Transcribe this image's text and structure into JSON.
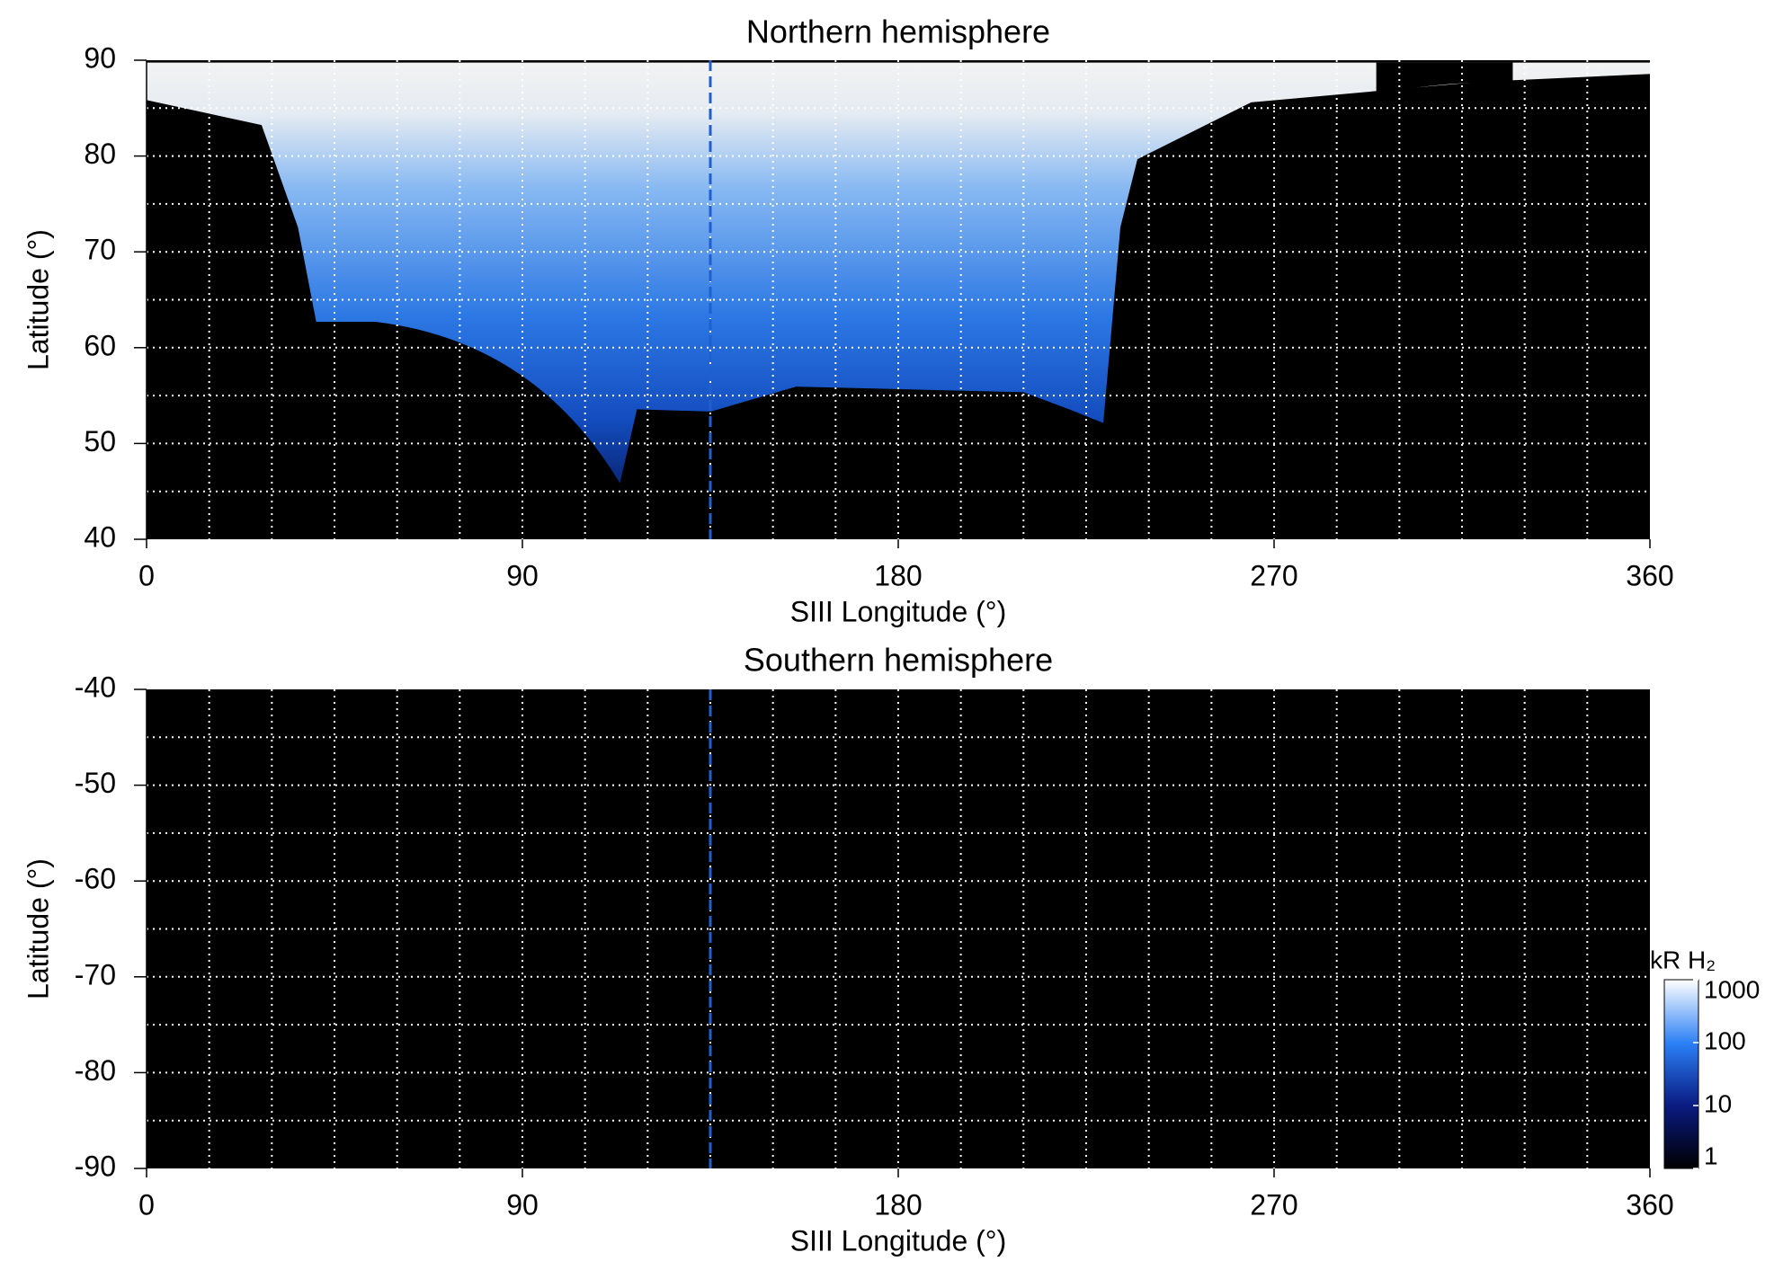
{
  "chart_data": [
    {
      "type": "heatmap",
      "title": "Northern hemisphere",
      "x_label": "SIII Longitude (°)",
      "y_label": "Latitude (°)",
      "xlim": [
        0,
        360
      ],
      "ylim": [
        40,
        90
      ],
      "xticks": [
        0,
        90,
        180,
        270,
        360
      ],
      "yticks": [
        40,
        50,
        60,
        70,
        80,
        90
      ],
      "xgrid": [
        15,
        30,
        45,
        60,
        75,
        90,
        105,
        120,
        135,
        150,
        165,
        180,
        195,
        210,
        225,
        240,
        255,
        270,
        285,
        300,
        315,
        330,
        345
      ],
      "ygrid": [
        45,
        50,
        55,
        60,
        65,
        70,
        75,
        80,
        85
      ],
      "grid_color": "#ffffff",
      "reference_longitude": 135,
      "reference_color": "#1f5fd0"
    },
    {
      "type": "heatmap",
      "title": "Southern hemisphere",
      "x_label": "SIII Longitude (°)",
      "y_label": "Latitude (°)",
      "xlim": [
        0,
        360
      ],
      "ylim": [
        -90,
        -40
      ],
      "xticks": [
        0,
        90,
        180,
        270,
        360
      ],
      "yticks": [
        -90,
        -80,
        -70,
        -60,
        -50,
        -40
      ],
      "xgrid": [
        15,
        30,
        45,
        60,
        75,
        90,
        105,
        120,
        135,
        150,
        165,
        180,
        195,
        210,
        225,
        240,
        255,
        270,
        285,
        300,
        315,
        330,
        345
      ],
      "ygrid": [
        -85,
        -80,
        -75,
        -70,
        -65,
        -60,
        -55,
        -50,
        -45
      ],
      "grid_color": "#ffffff",
      "reference_longitude": 135,
      "reference_color": "#1f5fd0"
    },
    {
      "type": "colorbar",
      "label": "kR H₂",
      "scale": "log",
      "ylim": [
        1,
        1000
      ],
      "yticks": [
        1,
        10,
        100,
        1000
      ]
    }
  ]
}
